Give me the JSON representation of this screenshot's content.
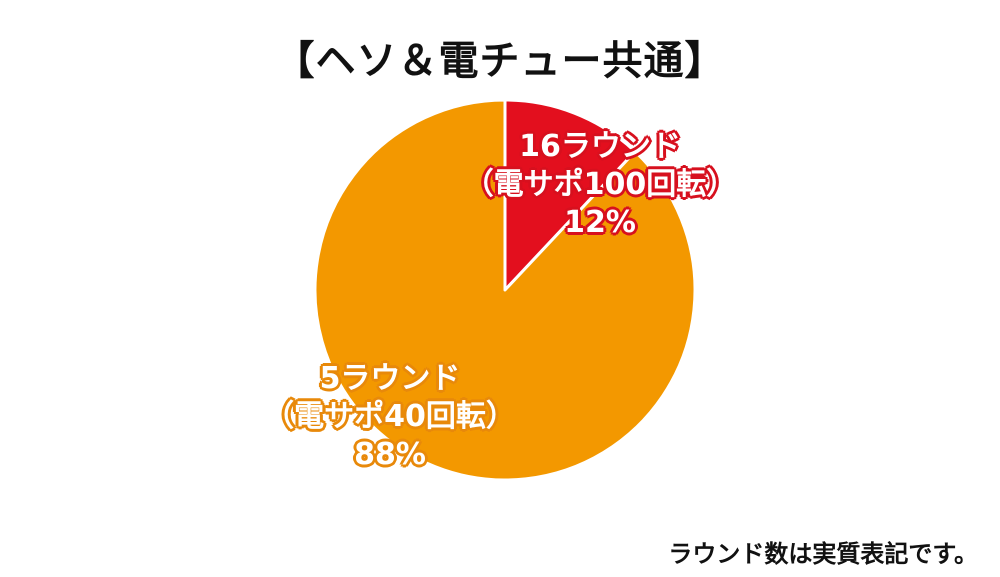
{
  "title": "【ヘソ＆電チュー共通】",
  "footnote": "ラウンド数は実質表記です。",
  "colors": {
    "slice_small": "#e30f1e",
    "slice_large": "#f39800",
    "separator": "#ffffff"
  },
  "chart_data": {
    "type": "pie",
    "slices": [
      {
        "lines": [
          "16ラウンド",
          "（電サポ100回転）"
        ],
        "percent_label": "12%",
        "value": 12
      },
      {
        "lines": [
          "5ラウンド",
          "（電サポ40回転）"
        ],
        "percent_label": "88%",
        "value": 88
      }
    ],
    "start": "12 o'clock",
    "direction": "clockwise"
  }
}
